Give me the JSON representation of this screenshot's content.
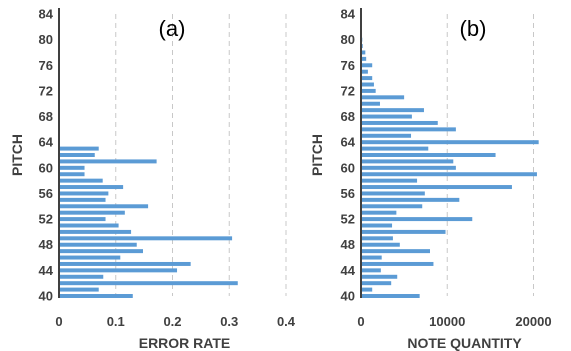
{
  "chart_data": [
    {
      "type": "bar",
      "orientation": "horizontal",
      "panel_label": "(a)",
      "title": "",
      "xlabel": "ERROR RATE",
      "ylabel": "PITCH",
      "xlim": [
        0,
        0.4
      ],
      "ylim": [
        40,
        84
      ],
      "xticks": [
        "0",
        "0.1",
        "0.2",
        "0.3",
        "0.4"
      ],
      "yticks": [
        "40",
        "44",
        "48",
        "52",
        "56",
        "60",
        "64",
        "68",
        "72",
        "76",
        "80",
        "84"
      ],
      "x_grid": true,
      "bar_color": "#5b9bd5",
      "pitches": [
        40,
        41,
        42,
        43,
        44,
        45,
        46,
        47,
        48,
        49,
        50,
        51,
        52,
        53,
        54,
        55,
        56,
        57,
        58,
        59,
        60,
        61,
        62,
        63
      ],
      "values": [
        0.13,
        0.07,
        0.315,
        0.078,
        0.208,
        0.232,
        0.108,
        0.148,
        0.137,
        0.305,
        0.127,
        0.105,
        0.082,
        0.116,
        0.157,
        0.082,
        0.087,
        0.113,
        0.077,
        0.045,
        0.045,
        0.172,
        0.063,
        0.07
      ]
    },
    {
      "type": "bar",
      "orientation": "horizontal",
      "panel_label": "(b)",
      "title": "",
      "xlabel": "NOTE QUANTITY",
      "ylabel": "PITCH",
      "xlim": [
        0,
        24000
      ],
      "ylim": [
        40,
        84
      ],
      "xticks": [
        "0",
        "10000",
        "20000"
      ],
      "yticks": [
        "40",
        "44",
        "48",
        "52",
        "56",
        "60",
        "64",
        "68",
        "72",
        "76",
        "80",
        "84"
      ],
      "x_grid": true,
      "bar_color": "#5b9bd5",
      "pitches": [
        40,
        41,
        42,
        43,
        44,
        45,
        46,
        47,
        48,
        49,
        50,
        51,
        52,
        53,
        54,
        55,
        56,
        57,
        58,
        59,
        60,
        61,
        62,
        63,
        64,
        65,
        66,
        67,
        68,
        69,
        70,
        71,
        72,
        73,
        74,
        75,
        76,
        77,
        78,
        79,
        80
      ],
      "values": [
        6800,
        1300,
        3500,
        4200,
        2300,
        8400,
        2400,
        8000,
        4500,
        3700,
        9800,
        3600,
        12900,
        4100,
        7100,
        11400,
        7400,
        17500,
        6500,
        20400,
        11000,
        10700,
        15600,
        7800,
        20600,
        5800,
        11000,
        8900,
        5900,
        7300,
        2200,
        5000,
        1700,
        1500,
        1300,
        800,
        1300,
        600,
        500,
        200,
        150
      ]
    }
  ]
}
